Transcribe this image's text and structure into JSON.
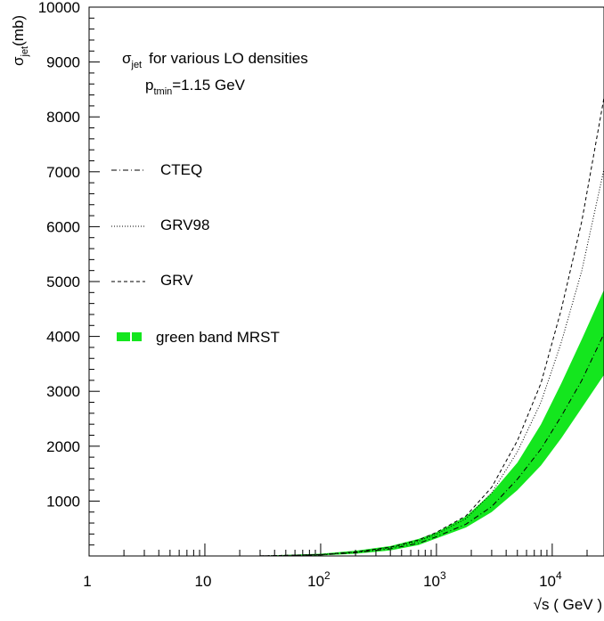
{
  "chart_data": {
    "type": "line",
    "xscale": "log",
    "xlim": [
      1,
      28000
    ],
    "ylim": [
      0,
      10000
    ],
    "xlabel": "√s ( GeV )",
    "ylabel_main": "σ",
    "ylabel_sub": "jet",
    "ylabel_unit": "(mb)",
    "annotation_title_main": "σ",
    "annotation_title_sub": "jet",
    "annotation_title_rest": "for various LO densities",
    "annotation_ptmin_main": "p",
    "annotation_ptmin_sub": "tmin",
    "annotation_ptmin_rest": "=1.15 GeV",
    "y_ticks": [
      1000,
      2000,
      3000,
      4000,
      5000,
      6000,
      7000,
      8000,
      9000,
      10000
    ],
    "x_tick_labels": [
      {
        "value": 1,
        "base": "1",
        "exp": ""
      },
      {
        "value": 10,
        "base": "10",
        "exp": ""
      },
      {
        "value": 100,
        "base": "10",
        "exp": "2"
      },
      {
        "value": 1000,
        "base": "10",
        "exp": "3"
      },
      {
        "value": 10000,
        "base": "10",
        "exp": "4"
      }
    ],
    "series": [
      {
        "name": "CTEQ",
        "style": "dashdot",
        "x": [
          30,
          100,
          200,
          400,
          700,
          1000,
          1800,
          3000,
          5000,
          8000,
          12000,
          18000,
          28000
        ],
        "y": [
          2,
          20,
          60,
          130,
          230,
          350,
          580,
          900,
          1400,
          1950,
          2550,
          3200,
          4050
        ]
      },
      {
        "name": "GRV98",
        "style": "dotted",
        "x": [
          30,
          100,
          200,
          400,
          700,
          1000,
          1800,
          3000,
          5000,
          8000,
          12000,
          18000,
          28000
        ],
        "y": [
          2,
          25,
          70,
          150,
          270,
          400,
          680,
          1150,
          1900,
          2800,
          3900,
          5200,
          7050
        ]
      },
      {
        "name": "GRV",
        "style": "dashed",
        "x": [
          30,
          100,
          200,
          400,
          700,
          1000,
          1800,
          3000,
          5000,
          8000,
          12000,
          18000,
          28000
        ],
        "y": [
          2,
          25,
          75,
          160,
          290,
          430,
          730,
          1250,
          2100,
          3150,
          4500,
          6100,
          8350
        ]
      }
    ],
    "band": {
      "name": "green band MRST",
      "color": "#14e61e",
      "x": [
        30,
        100,
        200,
        400,
        700,
        1000,
        1800,
        3000,
        5000,
        8000,
        12000,
        18000,
        28000
      ],
      "lower": [
        0,
        10,
        40,
        100,
        200,
        320,
        520,
        800,
        1200,
        1650,
        2150,
        2700,
        3300
      ],
      "upper": [
        5,
        40,
        95,
        180,
        310,
        430,
        720,
        1150,
        1700,
        2400,
        3150,
        3950,
        4850
      ]
    }
  }
}
